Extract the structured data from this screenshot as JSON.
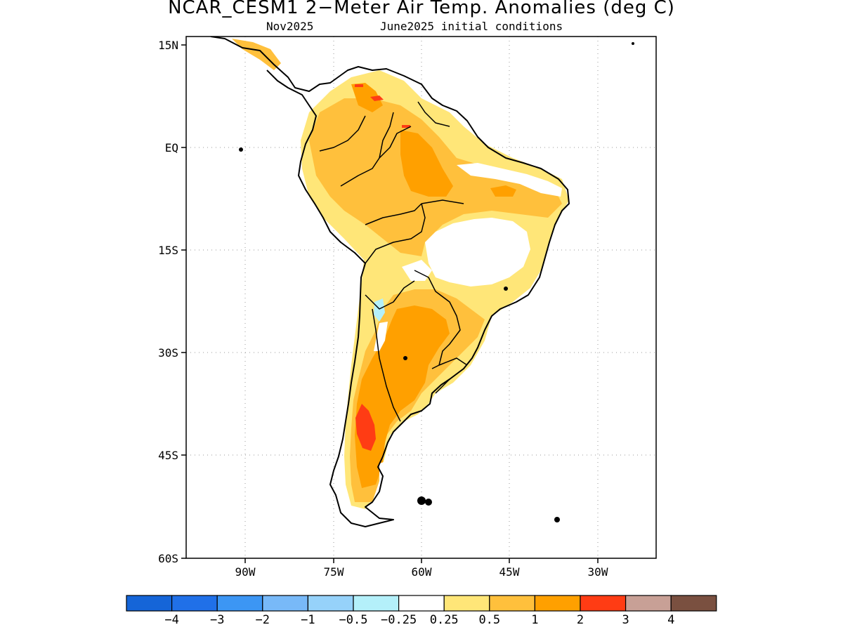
{
  "title": "NCAR_CESM1 2−Meter Air Temp. Anomalies (deg C)",
  "subtitle": {
    "valid": "Nov2025",
    "init": "June2025 initial conditions"
  },
  "axes": {
    "lat_ticks": [
      "15N",
      "EQ",
      "15S",
      "30S",
      "45S",
      "60S"
    ],
    "lon_ticks": [
      "90W",
      "75W",
      "60W",
      "45W",
      "30W"
    ]
  },
  "colorbar": {
    "colors": [
      "#1565d8",
      "#2070e8",
      "#3c96f4",
      "#78b9f8",
      "#96d2fa",
      "#b4f0fa",
      "#ffffff",
      "#ffe678",
      "#ffc03c",
      "#ffa000",
      "#ff3c14",
      "#c8a096",
      "#7a5040"
    ],
    "labels": [
      "−4",
      "−3",
      "−2",
      "−1",
      "−0.5",
      "−0.25",
      "0.25",
      "0.5",
      "1",
      "2",
      "3",
      "4"
    ]
  }
}
